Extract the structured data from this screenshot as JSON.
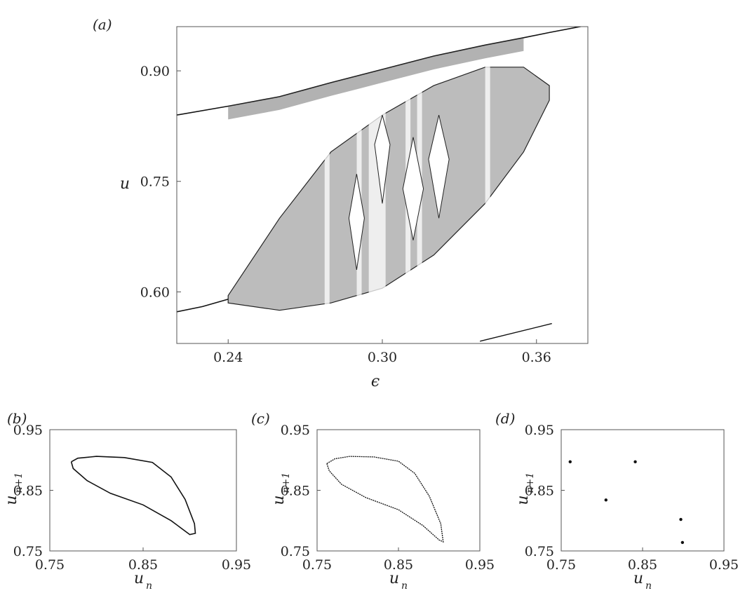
{
  "figure": {
    "panels": [
      "(a)",
      "(b)",
      "(c)",
      "(d)"
    ]
  },
  "chart_data": [
    {
      "id": "a",
      "type": "scatter",
      "panel_label": "(a)",
      "xlabel": "ϵ",
      "ylabel": "u",
      "xlim": [
        0.22,
        0.38
      ],
      "ylim": [
        0.53,
        0.96
      ],
      "xticks": [
        "0.24",
        "0.30",
        "0.36"
      ],
      "yticks": [
        "0.60",
        "0.75",
        "0.90"
      ],
      "xtick_values": [
        0.24,
        0.3,
        0.36
      ],
      "ytick_values": [
        0.6,
        0.75,
        0.9
      ],
      "description_data": {
        "upper_branch": [
          [
            0.22,
            0.84
          ],
          [
            0.24,
            0.852
          ],
          [
            0.26,
            0.865
          ],
          [
            0.28,
            0.884
          ],
          [
            0.3,
            0.902
          ],
          [
            0.32,
            0.92
          ],
          [
            0.34,
            0.935
          ],
          [
            0.355,
            0.945
          ],
          [
            0.365,
            0.952
          ],
          [
            0.38,
            0.962
          ]
        ],
        "lower_branch_start": [
          [
            0.22,
            0.573
          ],
          [
            0.23,
            0.58
          ],
          [
            0.24,
            0.59
          ]
        ],
        "chaotic_band_upper": [
          [
            0.24,
            0.595
          ],
          [
            0.26,
            0.7
          ],
          [
            0.28,
            0.79
          ],
          [
            0.3,
            0.84
          ],
          [
            0.32,
            0.88
          ],
          [
            0.34,
            0.905
          ],
          [
            0.355,
            0.905
          ],
          [
            0.365,
            0.88
          ]
        ],
        "chaotic_band_lower": [
          [
            0.24,
            0.585
          ],
          [
            0.26,
            0.575
          ],
          [
            0.28,
            0.585
          ],
          [
            0.3,
            0.605
          ],
          [
            0.32,
            0.65
          ],
          [
            0.34,
            0.72
          ],
          [
            0.355,
            0.79
          ],
          [
            0.365,
            0.86
          ]
        ],
        "ghost_line": [
          [
            0.338,
            0.533
          ],
          [
            0.366,
            0.557
          ]
        ]
      }
    },
    {
      "id": "b",
      "type": "scatter",
      "panel_label": "(b)",
      "xlabel": "u",
      "xlabel_sub": "n",
      "ylabel": "u",
      "ylabel_sub": "n+1",
      "xlim": [
        0.75,
        0.95
      ],
      "ylim": [
        0.75,
        0.95
      ],
      "xticks": [
        "0.75",
        "0.85",
        "0.95"
      ],
      "yticks": [
        "0.75",
        "0.85",
        "0.95"
      ],
      "loop": [
        [
          0.773,
          0.897
        ],
        [
          0.78,
          0.903
        ],
        [
          0.8,
          0.906
        ],
        [
          0.83,
          0.904
        ],
        [
          0.86,
          0.896
        ],
        [
          0.88,
          0.872
        ],
        [
          0.895,
          0.835
        ],
        [
          0.905,
          0.795
        ],
        [
          0.906,
          0.779
        ],
        [
          0.9,
          0.777
        ],
        [
          0.88,
          0.8
        ],
        [
          0.85,
          0.826
        ],
        [
          0.815,
          0.845
        ],
        [
          0.79,
          0.866
        ],
        [
          0.775,
          0.886
        ],
        [
          0.773,
          0.897
        ]
      ]
    },
    {
      "id": "c",
      "type": "scatter",
      "panel_label": "(c)",
      "xlabel": "u",
      "xlabel_sub": "n",
      "ylabel": "u",
      "ylabel_sub": "n+1",
      "xlim": [
        0.75,
        0.95
      ],
      "ylim": [
        0.75,
        0.95
      ],
      "xticks": [
        "0.75",
        "0.85",
        "0.95"
      ],
      "yticks": [
        "0.75",
        "0.85",
        "0.95"
      ],
      "loop": [
        [
          0.762,
          0.894
        ],
        [
          0.772,
          0.902
        ],
        [
          0.79,
          0.906
        ],
        [
          0.82,
          0.905
        ],
        [
          0.85,
          0.898
        ],
        [
          0.87,
          0.878
        ],
        [
          0.888,
          0.84
        ],
        [
          0.902,
          0.795
        ],
        [
          0.905,
          0.765
        ],
        [
          0.9,
          0.768
        ],
        [
          0.88,
          0.792
        ],
        [
          0.85,
          0.818
        ],
        [
          0.81,
          0.838
        ],
        [
          0.78,
          0.86
        ],
        [
          0.765,
          0.882
        ],
        [
          0.762,
          0.894
        ]
      ]
    },
    {
      "id": "d",
      "type": "scatter",
      "panel_label": "(d)",
      "xlabel": "u",
      "xlabel_sub": "n",
      "ylabel": "u",
      "ylabel_sub": "n+1",
      "xlim": [
        0.75,
        0.95
      ],
      "ylim": [
        0.75,
        0.95
      ],
      "xticks": [
        "0.75",
        "0.85",
        "0.95"
      ],
      "yticks": [
        "0.75",
        "0.85",
        "0.95"
      ],
      "points": [
        [
          0.761,
          0.897
        ],
        [
          0.805,
          0.834
        ],
        [
          0.841,
          0.897
        ],
        [
          0.897,
          0.802
        ],
        [
          0.899,
          0.764
        ]
      ]
    }
  ]
}
